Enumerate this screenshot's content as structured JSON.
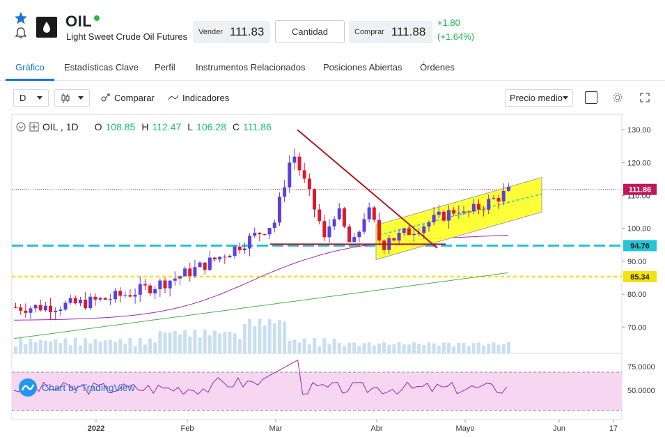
{
  "header": {
    "symbol": "OIL",
    "name": "Light Sweet Crude Oil Futures",
    "sell_label": "Vender",
    "sell_price": "111.83",
    "quantity_label": "Cantidad",
    "buy_label": "Comprar",
    "buy_price": "111.88",
    "change": "+1.80",
    "change_pct": "(+1.64%)"
  },
  "tabs": [
    "Gráfico",
    "Estadísticas Clave",
    "Perfil",
    "Instrumentos Relacionados",
    "Posiciones Abiertas",
    "Órdenes"
  ],
  "toolbar": {
    "interval": "D",
    "compare": "Comparar",
    "indicators": "Indicadores",
    "price_mode": "Precio medio"
  },
  "legend": {
    "symbol": "OIL , 1D",
    "o_label": "O",
    "o": "108.85",
    "h_label": "H",
    "h": "112.47",
    "l_label": "L",
    "l": "106.28",
    "c_label": "C",
    "c": "111.86"
  },
  "chart_data": {
    "type": "candlestick",
    "y_ticks": [
      "130.00",
      "120.00",
      "110.00",
      "100.00",
      "90.00",
      "80.00",
      "70.00"
    ],
    "ylim": [
      62,
      133
    ],
    "price_tags": [
      {
        "value": "111.86",
        "color": "#c2185b"
      },
      {
        "value": "94.76",
        "color": "#22c4d6"
      },
      {
        "value": "85.34",
        "color": "#f4e20c"
      }
    ],
    "x_ticks": [
      "2022",
      "Feb",
      "Mar",
      "Abr",
      "Mayo",
      "Jun",
      "17"
    ],
    "rsi_ticks": [
      "75.0000",
      "50.0000"
    ],
    "up_color": "#5c3fe0",
    "down_color": "#e0182d"
  },
  "watermark": "Chart by TradingView"
}
